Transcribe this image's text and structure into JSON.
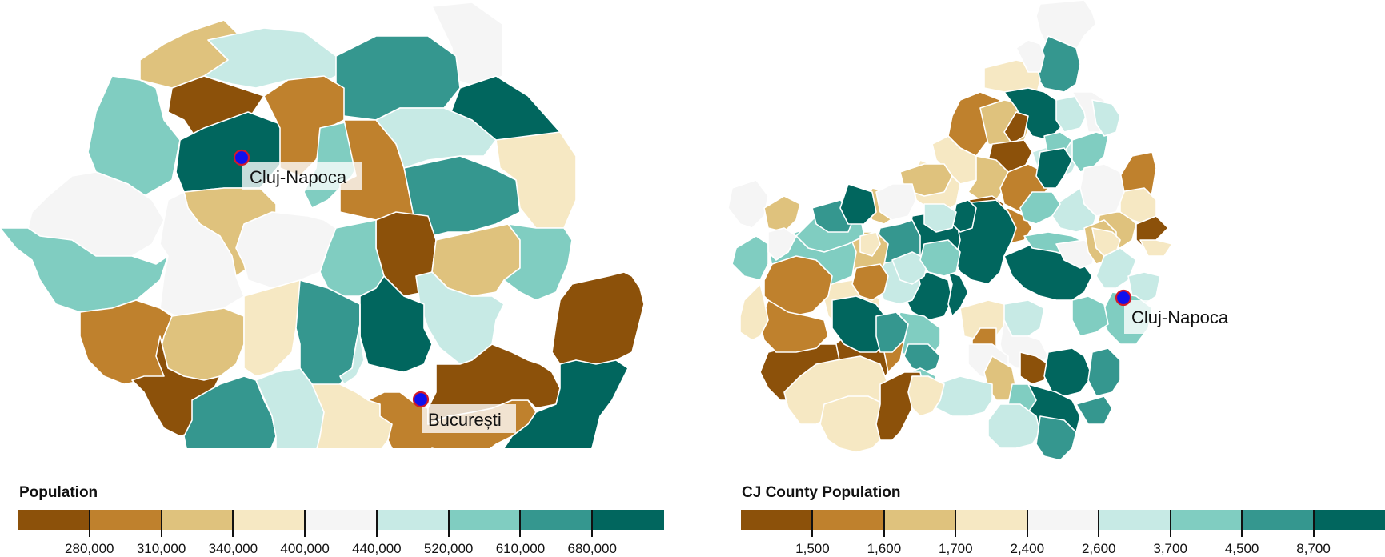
{
  "left_map": {
    "legend": {
      "title": "Population",
      "colors": [
        "#8c510a",
        "#bf812d",
        "#dfc27d",
        "#f6e8c3",
        "#f5f5f5",
        "#c7eae5",
        "#80cdc1",
        "#35978f",
        "#01665e"
      ],
      "ticks": [
        "280,000",
        "310,000",
        "340,000",
        "400,000",
        "440,000",
        "520,000",
        "610,000",
        "680,000"
      ]
    },
    "cities": [
      {
        "name": "Cluj-Napoca"
      },
      {
        "name": "București"
      }
    ]
  },
  "right_map": {
    "legend": {
      "title": "CJ County Population",
      "colors": [
        "#8c510a",
        "#bf812d",
        "#dfc27d",
        "#f6e8c3",
        "#f5f5f5",
        "#c7eae5",
        "#80cdc1",
        "#35978f",
        "#01665e"
      ],
      "ticks": [
        "1,500",
        "1,600",
        "1,700",
        "2,400",
        "2,600",
        "3,700",
        "4,500",
        "8,700"
      ]
    },
    "cities": [
      {
        "name": "Cluj-Napoca"
      }
    ]
  }
}
